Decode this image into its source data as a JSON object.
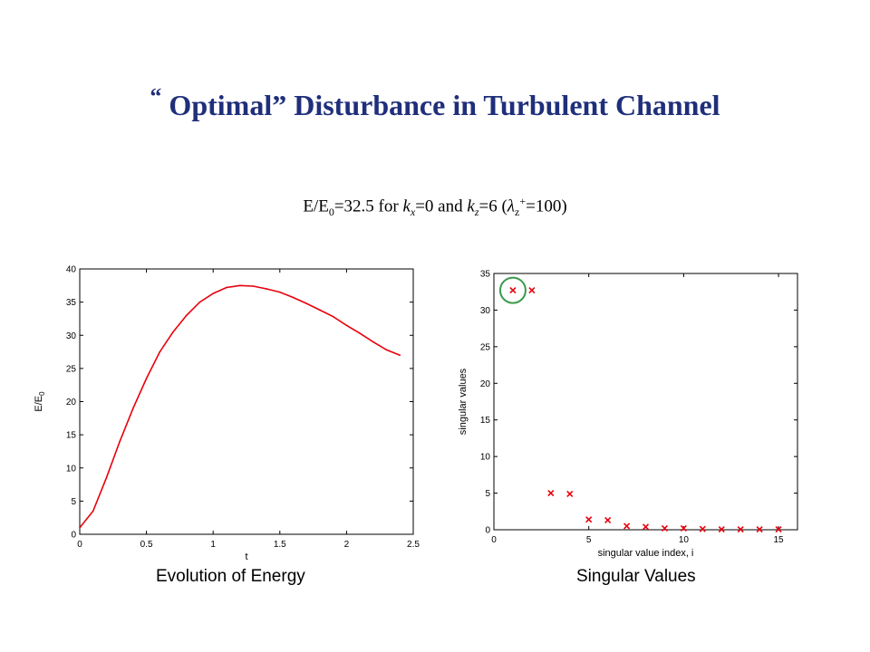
{
  "slide": {
    "title_quote_open": "“",
    "title_main": "Optimal” Disturbance in Turbulent Channel",
    "subtitle": {
      "e_ratio": "E/E",
      "e_sub": "0",
      "value_text": "=32.5 for ",
      "kx_var": "k",
      "kx_sub": "x",
      "kx_val": "=0 and ",
      "kz_var": "k",
      "kz_sub": "z",
      "kz_val": "=6 (",
      "lambda": "λ",
      "lambda_sub": "z",
      "lambda_sup": "+",
      "lambda_val": "=100)"
    },
    "caption_left": "Evolution of Energy",
    "caption_right": "Singular Values"
  },
  "chart_data": [
    {
      "type": "line",
      "xlabel": "t",
      "ylabel": "E/E",
      "ylabel_sub": "0",
      "xlim": [
        0,
        2.5
      ],
      "ylim": [
        0,
        40
      ],
      "xticks": [
        0,
        0.5,
        1,
        1.5,
        2,
        2.5
      ],
      "xtick_labels": [
        "0",
        "0.5",
        "1",
        "1.5",
        "2",
        "2.5"
      ],
      "yticks": [
        0,
        5,
        10,
        15,
        20,
        25,
        30,
        35,
        40
      ],
      "ytick_labels": [
        "0",
        "5",
        "10",
        "15",
        "20",
        "25",
        "30",
        "35",
        "40"
      ],
      "grid": false,
      "color": "#e8000b",
      "x": [
        0,
        0.1,
        0.2,
        0.3,
        0.4,
        0.5,
        0.6,
        0.7,
        0.8,
        0.9,
        1.0,
        1.1,
        1.2,
        1.3,
        1.4,
        1.5,
        1.6,
        1.7,
        1.8,
        1.9,
        2.0,
        2.1,
        2.2,
        2.3,
        2.4
      ],
      "y": [
        1.0,
        3.5,
        8.5,
        14.0,
        19.0,
        23.5,
        27.5,
        30.5,
        33.0,
        35.0,
        36.3,
        37.2,
        37.5,
        37.4,
        37.0,
        36.5,
        35.7,
        34.8,
        33.8,
        32.8,
        31.5,
        30.3,
        29.0,
        27.8,
        27.0
      ]
    },
    {
      "type": "scatter",
      "xlabel": "singular value index, i",
      "ylabel": "singular values",
      "xlim": [
        0,
        16
      ],
      "ylim": [
        0,
        35
      ],
      "xticks": [
        0,
        5,
        10,
        15
      ],
      "xtick_labels": [
        "0",
        "5",
        "10",
        "15"
      ],
      "yticks": [
        0,
        5,
        10,
        15,
        20,
        25,
        30,
        35
      ],
      "ytick_labels": [
        "0",
        "5",
        "10",
        "15",
        "20",
        "25",
        "30",
        "35"
      ],
      "grid": false,
      "marker": "x",
      "color": "#e8000b",
      "highlight_color": "#3a9a4a",
      "highlight_index": 0,
      "x": [
        1,
        2,
        3,
        4,
        5,
        6,
        7,
        8,
        9,
        10,
        11,
        12,
        13,
        14,
        15
      ],
      "y": [
        32.7,
        32.7,
        5.0,
        4.9,
        1.4,
        1.3,
        0.5,
        0.4,
        0.2,
        0.2,
        0.1,
        0.05,
        0.05,
        0.05,
        0.05
      ]
    }
  ]
}
